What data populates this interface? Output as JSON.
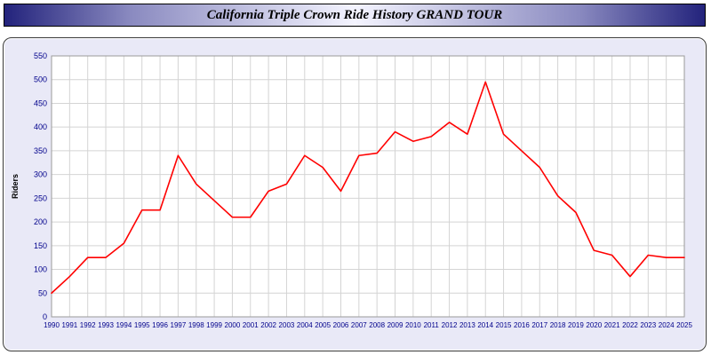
{
  "header": {
    "title": "California Triple Crown Ride History GRAND TOUR"
  },
  "chart_data": {
    "type": "line",
    "title": "California Triple Crown Ride History GRAND TOUR",
    "xlabel": "",
    "ylabel": "Riders",
    "ylim": [
      0,
      550
    ],
    "ytick_step": 50,
    "grid": true,
    "legend": "none",
    "line_color": "#ff0000",
    "tick_label_color": "#00008b",
    "plot_bg": "#ffffff",
    "panel_bg": "#e9e9f7",
    "x": [
      1990,
      1991,
      1992,
      1993,
      1994,
      1995,
      1996,
      1997,
      1998,
      1999,
      2000,
      2001,
      2002,
      2003,
      2004,
      2005,
      2006,
      2007,
      2008,
      2009,
      2010,
      2011,
      2012,
      2013,
      2014,
      2015,
      2016,
      2017,
      2018,
      2019,
      2020,
      2021,
      2022,
      2023,
      2024,
      2025
    ],
    "series": [
      {
        "name": "Riders",
        "values": [
          50,
          85,
          125,
          125,
          155,
          225,
          225,
          340,
          280,
          245,
          210,
          210,
          265,
          280,
          340,
          315,
          265,
          340,
          345,
          390,
          370,
          380,
          410,
          385,
          495,
          385,
          350,
          315,
          255,
          220,
          140,
          130,
          85,
          130,
          125,
          125
        ]
      }
    ]
  }
}
